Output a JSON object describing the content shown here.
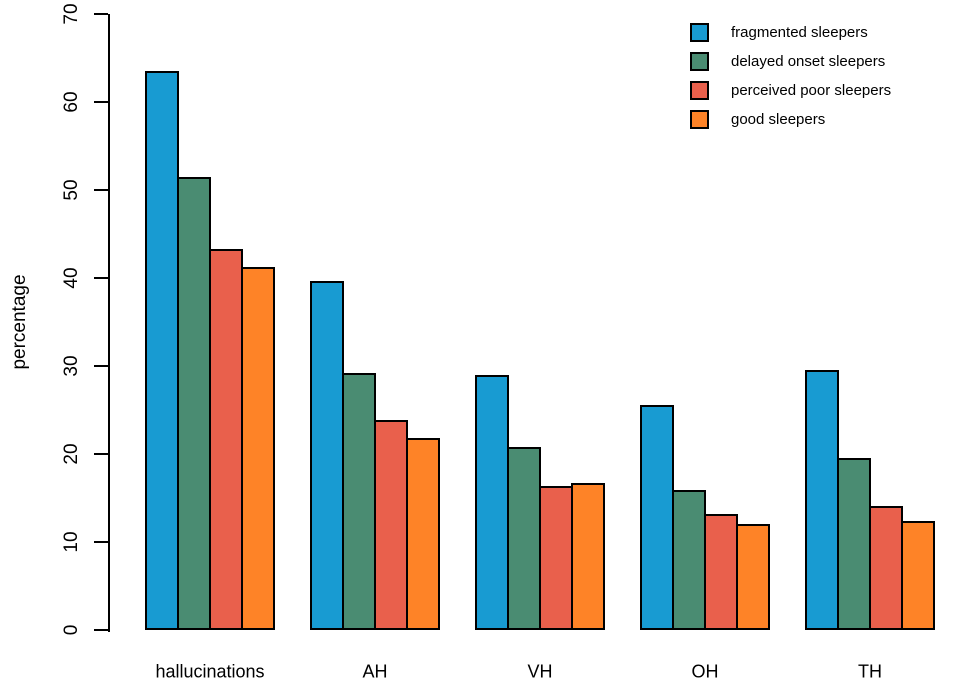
{
  "figure": {
    "ylabel": "percentage"
  },
  "chart_data": {
    "type": "bar",
    "title": "",
    "xlabel": "",
    "ylabel": "percentage",
    "ylim": [
      0,
      70
    ],
    "yticks": [
      0,
      10,
      20,
      30,
      40,
      50,
      60,
      70
    ],
    "grid": false,
    "legend_position": "top-right",
    "bar_border_color": "#000000",
    "categories": [
      "hallucinations",
      "AH",
      "VH",
      "OH",
      "TH"
    ],
    "series": [
      {
        "name": "fragmented sleepers",
        "color": "#189BD2",
        "values": [
          63.5,
          39.7,
          29.0,
          25.6,
          29.5
        ]
      },
      {
        "name": "delayed onset sleepers",
        "color": "#4A8C72",
        "values": [
          51.5,
          29.2,
          20.8,
          15.9,
          19.6
        ]
      },
      {
        "name": "perceived poor sleepers",
        "color": "#E9604C",
        "values": [
          43.3,
          23.9,
          16.4,
          13.2,
          14.1
        ]
      },
      {
        "name": "good sleepers",
        "color": "#FE8327",
        "values": [
          41.2,
          21.8,
          16.7,
          12.0,
          12.4
        ]
      }
    ]
  }
}
